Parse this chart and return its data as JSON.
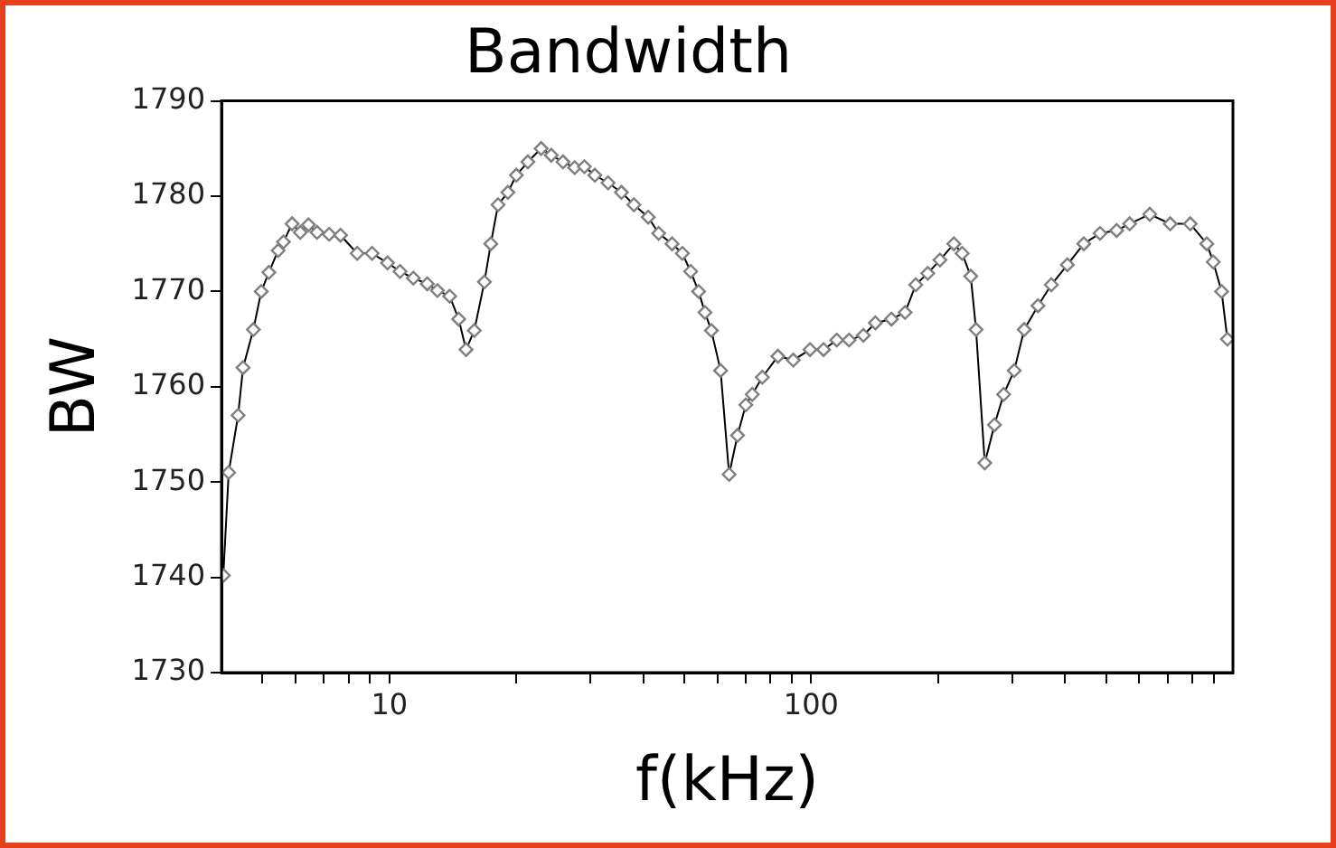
{
  "chart_data": {
    "type": "line",
    "title": "Bandwidth",
    "xlabel": "f(kHz)",
    "ylabel": "BW",
    "log": "x",
    "grid": false,
    "legend": false,
    "marker": "diamond",
    "line_style": "solid",
    "xlim": [
      4,
      1000
    ],
    "xticks": [
      {
        "value": 5,
        "label": null
      },
      {
        "value": 6,
        "label": null
      },
      {
        "value": 7,
        "label": null
      },
      {
        "value": 8,
        "label": null
      },
      {
        "value": 9,
        "label": null
      },
      10,
      {
        "value": 20,
        "label": null
      },
      {
        "value": 30,
        "label": null
      },
      {
        "value": 40,
        "label": null
      },
      {
        "value": 50,
        "label": null
      },
      {
        "value": 60,
        "label": null
      },
      {
        "value": 70,
        "label": null
      },
      {
        "value": 80,
        "label": null
      },
      {
        "value": 90,
        "label": null
      },
      100,
      {
        "value": 200,
        "label": null
      },
      {
        "value": 300,
        "label": null
      },
      {
        "value": 400,
        "label": null
      },
      {
        "value": 500,
        "label": null
      },
      {
        "value": 600,
        "label": null
      },
      {
        "value": 700,
        "label": null
      },
      {
        "value": 800,
        "label": null
      },
      {
        "value": 900,
        "label": null
      }
    ],
    "ylim": [
      1730,
      1790
    ],
    "yticks": [
      1730,
      1740,
      1750,
      1760,
      1770,
      1780,
      1790
    ],
    "series": [
      {
        "color": "#000000",
        "x": [
          4.04,
          4.16,
          4.38,
          4.5,
          4.76,
          4.97,
          5.18,
          5.45,
          5.61,
          5.88,
          6.15,
          6.43,
          6.74,
          7.2,
          7.66,
          8.39,
          9.1,
          9.9,
          10.6,
          11.4,
          12.3,
          13,
          13.9,
          14.6,
          15.2,
          15.9,
          16.8,
          17.4,
          18.1,
          19.1,
          20,
          21.3,
          22.9,
          24.2,
          25.8,
          27.5,
          29,
          30.7,
          33,
          35.5,
          38,
          41.1,
          43.5,
          46.8,
          49.5,
          51.8,
          54.1,
          56,
          58,
          61,
          63.9,
          66.9,
          70,
          72.5,
          76.6,
          83.4,
          90.7,
          99.4,
          107,
          115,
          123,
          133,
          142,
          155,
          167,
          177,
          189,
          202,
          218,
          228,
          239,
          246,
          258,
          272,
          286,
          303,
          320,
          345,
          371,
          405,
          443,
          484,
          530,
          569,
          635,
          710,
          792,
          867,
          898,
          940,
          970
        ],
        "values": [
          1740.2,
          1751,
          1757,
          1762,
          1766,
          1770,
          1772,
          1774.3,
          1775.2,
          1777.1,
          1776.2,
          1777,
          1776.2,
          1776,
          1775.9,
          1774,
          1774,
          1773,
          1772.1,
          1771.4,
          1770.8,
          1770.1,
          1769.5,
          1767.1,
          1763.9,
          1765.9,
          1771,
          1775,
          1779.1,
          1780.4,
          1782.2,
          1783.6,
          1785,
          1784.3,
          1783.6,
          1783,
          1783.1,
          1782.2,
          1781.4,
          1780.4,
          1779.1,
          1777.8,
          1776.1,
          1775,
          1774,
          1772.1,
          1770,
          1767.8,
          1765.9,
          1761.7,
          1750.8,
          1754.9,
          1758.1,
          1759.2,
          1761,
          1763.2,
          1762.8,
          1763.9,
          1763.9,
          1764.9,
          1764.9,
          1765.4,
          1766.7,
          1767.1,
          1767.8,
          1770.7,
          1771.9,
          1773.3,
          1775,
          1774,
          1771.6,
          1766,
          1752,
          1756,
          1759.2,
          1761.7,
          1766,
          1768.5,
          1770.7,
          1772.8,
          1775,
          1776.1,
          1776.4,
          1777.1,
          1778.1,
          1777.1,
          1777.1,
          1775,
          1773.1,
          1770,
          1765
        ]
      }
    ]
  }
}
